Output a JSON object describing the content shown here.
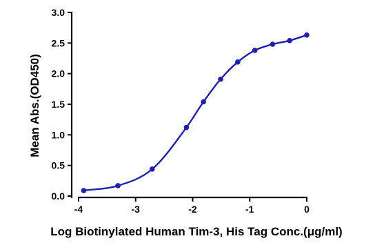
{
  "chart_data": {
    "type": "scatter",
    "xlabel": "Log Biotinylated Human Tim-3, His Tag Conc.(μg/ml)",
    "ylabel": "Mean Abs.(OD450)",
    "xlim": [
      -4,
      0
    ],
    "ylim": [
      0,
      3.0
    ],
    "x_ticks": [
      -4,
      -3,
      -2,
      -1,
      0
    ],
    "x_tick_labels": [
      "-4",
      "-3",
      "-2",
      "-1",
      "0"
    ],
    "y_ticks": [
      0,
      0.5,
      1.0,
      1.5,
      2.0,
      2.5,
      3.0
    ],
    "y_tick_labels": [
      "0.0",
      "0.5",
      "1.0",
      "1.5",
      "2.0",
      "2.5",
      "3.0"
    ],
    "grid": false,
    "legend": "none",
    "color": "#1f1fb4",
    "series": [
      {
        "points": [
          {
            "x": -3.91,
            "y": 0.09
          },
          {
            "x": -3.31,
            "y": 0.17
          },
          {
            "x": -2.71,
            "y": 0.44
          },
          {
            "x": -2.11,
            "y": 1.12
          },
          {
            "x": -1.81,
            "y": 1.54
          },
          {
            "x": -1.51,
            "y": 1.91
          },
          {
            "x": -1.21,
            "y": 2.19
          },
          {
            "x": -0.91,
            "y": 2.38
          },
          {
            "x": -0.6,
            "y": 2.48
          },
          {
            "x": -0.3,
            "y": 2.54
          },
          {
            "x": 0.0,
            "y": 2.63
          }
        ]
      }
    ]
  }
}
